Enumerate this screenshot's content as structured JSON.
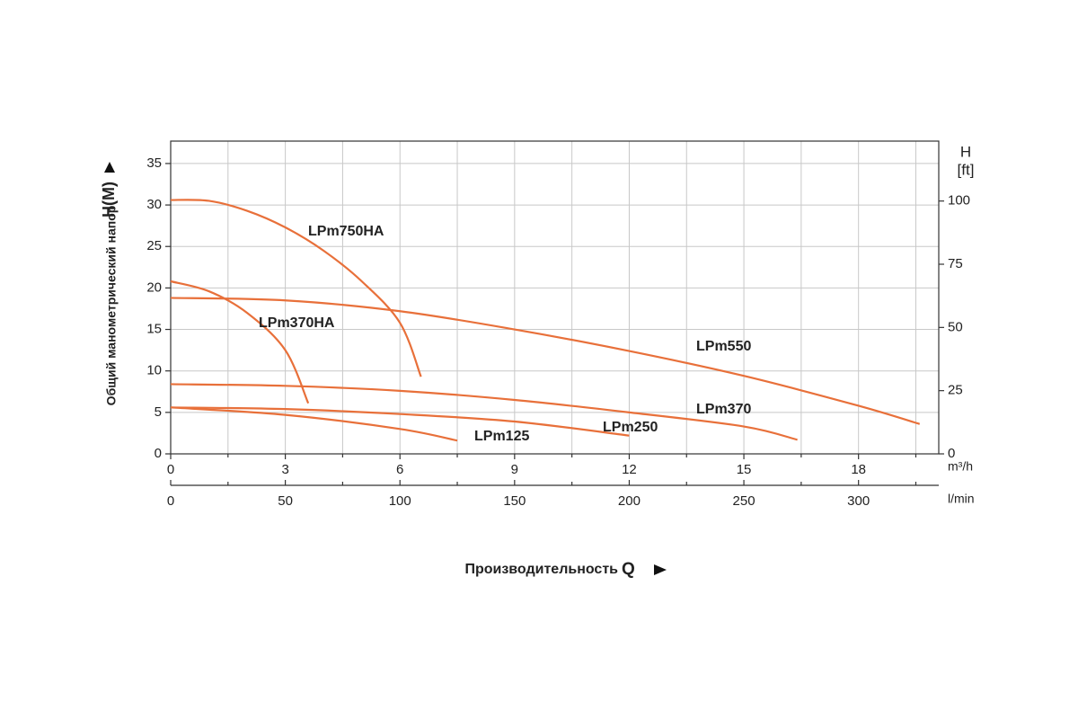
{
  "chart_data": {
    "type": "line",
    "ylabel": "Общий манометрический напор",
    "ylabel_unit": "H(M)",
    "y2label": "H",
    "y2label_unit": "[ft]",
    "xlabel": "Производительность",
    "xlabel_unit": "Q",
    "x_unit": "m³/h",
    "x2_unit": "l/min",
    "xlim": [
      0,
      20.1
    ],
    "xticks": [
      0,
      3,
      6,
      9,
      12,
      15,
      18
    ],
    "x_minor_ticks": [
      1.5,
      4.5,
      7.5,
      10.5,
      13.5,
      16.5,
      19.5
    ],
    "x2lim": [
      0,
      335
    ],
    "x2ticks": [
      0,
      50,
      100,
      150,
      200,
      250,
      300
    ],
    "x2_minor_ticks": [
      25,
      75,
      125,
      175,
      225,
      275,
      325
    ],
    "ylim": [
      0,
      37.7
    ],
    "yticks": [
      0,
      5,
      10,
      15,
      20,
      25,
      30,
      35
    ],
    "y2lim": [
      0,
      123.7
    ],
    "y2ticks": [
      0,
      25,
      50,
      75,
      100
    ],
    "grid": true,
    "series": [
      {
        "name": "LPm750HA",
        "color": "#e8703a",
        "x": [
          0,
          1,
          2,
          3,
          4,
          5,
          6,
          6.55
        ],
        "values": [
          30.6,
          30.5,
          29.3,
          27.3,
          24.5,
          20.8,
          15.8,
          9.3
        ]
      },
      {
        "name": "LPm370HA",
        "color": "#e8703a",
        "x": [
          0,
          1,
          2,
          3,
          3.6
        ],
        "values": [
          20.8,
          19.6,
          17,
          12.5,
          6.1
        ]
      },
      {
        "name": "LPm550",
        "color": "#e8703a",
        "x": [
          0,
          3,
          6,
          9,
          12,
          15,
          18,
          19.6
        ],
        "values": [
          18.8,
          18.5,
          17.2,
          15,
          12.4,
          9.4,
          5.8,
          3.6
        ]
      },
      {
        "name": "LPm370",
        "color": "#e8703a",
        "x": [
          0,
          3,
          6,
          9,
          12,
          15,
          16.4
        ],
        "values": [
          8.4,
          8.2,
          7.6,
          6.5,
          5,
          3.3,
          1.7
        ]
      },
      {
        "name": "LPm250",
        "color": "#e8703a",
        "x": [
          0,
          3,
          6,
          9,
          12
        ],
        "values": [
          5.6,
          5.4,
          4.8,
          3.9,
          2.2
        ]
      },
      {
        "name": "LPm125",
        "color": "#e8703a",
        "x": [
          0,
          3,
          6,
          7.5
        ],
        "values": [
          5.6,
          4.7,
          3,
          1.6
        ]
      }
    ]
  }
}
